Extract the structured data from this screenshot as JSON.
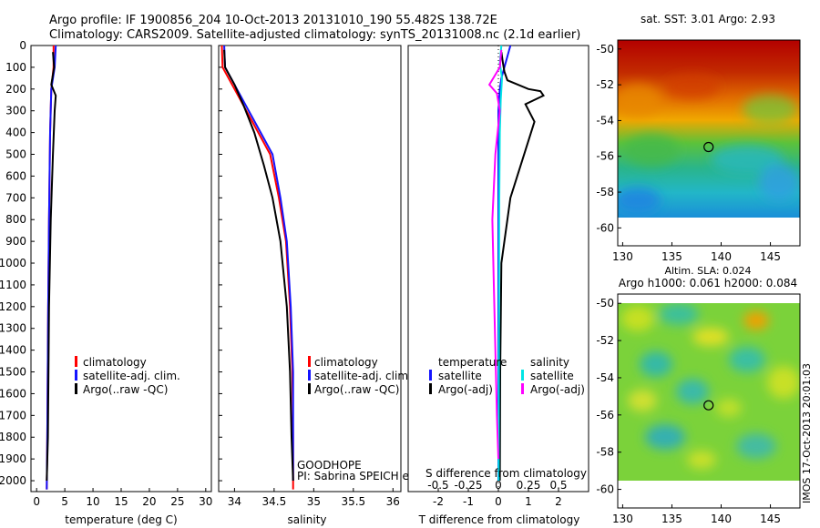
{
  "header": {
    "line1": "Argo profile: IF 1900856_204 10-Oct-2013 20131010_190 55.482S 138.72E",
    "line2": "Climatology: CARS2009. Satellite-adjusted climatology: synTS_20131008.nc (2.1d earlier)"
  },
  "colors": {
    "climatology": "#ff0000",
    "satellite": "#1414ff",
    "argo": "#000000",
    "salinity_satellite": "#00e5e5",
    "salinity_argo": "#ff00ff"
  },
  "chart_data": [
    {
      "id": "temperature",
      "type": "line",
      "xlabel": "temperature (deg C)",
      "xlim": [
        -1,
        31
      ],
      "xticks": [
        0,
        5,
        10,
        15,
        20,
        25,
        30
      ],
      "xtick_labels": [
        "0",
        "5",
        "10",
        "15",
        "20",
        "25",
        "30"
      ],
      "ylim": [
        2050,
        0
      ],
      "yticks": [
        0,
        100,
        200,
        300,
        400,
        500,
        600,
        700,
        800,
        900,
        1000,
        1100,
        1200,
        1300,
        1400,
        1500,
        1600,
        1700,
        1800,
        1900,
        2000
      ],
      "ytick_labels": [
        "0",
        "100",
        "200",
        "300",
        "400",
        "500",
        "600",
        "700",
        "800",
        "900",
        "1000",
        "1100",
        "1200",
        "1300",
        "1400",
        "1500",
        "1600",
        "1700",
        "1800",
        "1900",
        "2000"
      ],
      "legend": [
        "climatology",
        "satellite-adj. clim.",
        "Argo(..raw -QC)"
      ],
      "series": [
        {
          "name": "climatology",
          "color": "climatology",
          "x": [
            3.0,
            3.0,
            2.6,
            2.4,
            2.2,
            2.05,
            1.9,
            1.8
          ],
          "y": [
            0,
            100,
            200,
            400,
            800,
            1200,
            1800,
            2040
          ]
        },
        {
          "name": "satellite-adj. clim.",
          "color": "satellite",
          "x": [
            3.4,
            3.2,
            2.6,
            2.4,
            2.2,
            2.05,
            1.9,
            1.8
          ],
          "y": [
            0,
            100,
            200,
            400,
            800,
            1200,
            1800,
            2040
          ]
        },
        {
          "name": "Argo(..raw -QC)",
          "color": "argo",
          "x": [
            2.9,
            3.1,
            2.6,
            3.4,
            3.2,
            2.9,
            2.5,
            2.2,
            2.0,
            1.8
          ],
          "y": [
            30,
            100,
            180,
            230,
            300,
            500,
            800,
            1200,
            1800,
            2000
          ]
        }
      ]
    },
    {
      "id": "salinity",
      "type": "line",
      "xlabel": "salinity",
      "xlim": [
        33.8,
        36.1
      ],
      "xticks": [
        34,
        34.5,
        35,
        35.5,
        36
      ],
      "xtick_labels": [
        "34",
        "34.5",
        "35",
        "35.5",
        "36"
      ],
      "ylim": [
        2050,
        0
      ],
      "legend": [
        "climatology",
        "satellite-adj. clim.",
        "Argo(..raw -QC)"
      ],
      "annotation": [
        "GOODHOPE",
        "PI: Sabrina SPEICH et Michel ARHAN"
      ],
      "series": [
        {
          "name": "climatology",
          "color": "climatology",
          "x": [
            33.84,
            33.85,
            34.0,
            34.15,
            34.3,
            34.45,
            34.56,
            34.65,
            34.7,
            34.73,
            34.74,
            34.74
          ],
          "y": [
            0,
            100,
            200,
            300,
            400,
            500,
            700,
            900,
            1200,
            1500,
            1800,
            2040
          ]
        },
        {
          "name": "satellite-adj. clim.",
          "color": "satellite",
          "x": [
            33.87,
            33.88,
            34.03,
            34.18,
            34.33,
            34.48,
            34.58,
            34.66,
            34.71,
            34.74,
            34.74,
            34.74
          ],
          "y": [
            0,
            100,
            200,
            300,
            400,
            500,
            700,
            900,
            1200,
            1500,
            1800,
            2000
          ]
        },
        {
          "name": "Argo(..raw -QC)",
          "color": "argo",
          "x": [
            33.87,
            33.88,
            34.0,
            34.12,
            34.25,
            34.37,
            34.48,
            34.58,
            34.66,
            34.7,
            34.72,
            34.74
          ],
          "y": [
            20,
            100,
            180,
            280,
            400,
            550,
            700,
            900,
            1200,
            1500,
            1800,
            2000
          ]
        }
      ]
    },
    {
      "id": "difference",
      "type": "line",
      "xlabel": "T difference from climatology",
      "xlim": [
        -3,
        3
      ],
      "xticks": [
        -2,
        -1,
        0,
        1,
        2
      ],
      "xtick_labels": [
        "-2",
        "-1",
        "0",
        "1",
        "2"
      ],
      "top_label": "S difference from climatology",
      "sticks_labels": [
        "-0.5",
        "-0.25",
        "0",
        "0.25",
        "0.5"
      ],
      "sticks_values": [
        -2,
        -1,
        0,
        1,
        2
      ],
      "ylim": [
        2050,
        0
      ],
      "legend_temperature": {
        "title": "temperature",
        "items": [
          "satellite",
          "Argo(-adj)"
        ]
      },
      "legend_salinity": {
        "title": "salinity",
        "items": [
          "satellite",
          "Argo(-adj)"
        ]
      },
      "series": [
        {
          "name": "temperature satellite",
          "color": "satellite",
          "x": [
            0.4,
            0.3,
            0.2,
            0.1,
            0.05,
            0.0,
            0.0,
            0.0,
            0.0
          ],
          "y": [
            0,
            50,
            100,
            150,
            200,
            300,
            800,
            1400,
            2000
          ]
        },
        {
          "name": "temperature Argo(-adj)",
          "color": "argo",
          "x": [
            0.1,
            0.15,
            0.2,
            0.3,
            1.0,
            1.4,
            1.5,
            0.9,
            1.2,
            0.4,
            0.1,
            0.06,
            0.05
          ],
          "y": [
            30,
            80,
            120,
            160,
            200,
            210,
            230,
            270,
            350,
            700,
            1000,
            1500,
            2000
          ]
        },
        {
          "name": "salinity satellite",
          "color": "salinity_satellite",
          "x": [
            0.1,
            0.05,
            0.12,
            0.08,
            0.05,
            0.03,
            0.02,
            0.01
          ],
          "y": [
            0,
            80,
            150,
            250,
            400,
            700,
            1200,
            2000
          ]
        },
        {
          "name": "salinity Argo(-adj)",
          "color": "salinity_argo",
          "x": [
            0.1,
            0.05,
            -0.3,
            -0.05,
            0.05,
            -0.1,
            -0.2,
            -0.15,
            -0.1,
            -0.05,
            0.0
          ],
          "y": [
            20,
            100,
            180,
            220,
            300,
            500,
            800,
            1100,
            1400,
            1700,
            1900
          ]
        }
      ]
    },
    {
      "id": "sst_map",
      "type": "heatmap",
      "title": "sat. SST: 3.01  Argo: 2.93",
      "xlim": [
        129.5,
        148
      ],
      "ylim": [
        -61,
        -49.5
      ],
      "xticks": [
        130,
        135,
        140,
        145
      ],
      "xtick_labels": [
        "130",
        "135",
        "140",
        "145"
      ],
      "yticks": [
        -50,
        -52,
        -54,
        -56,
        -58,
        -60
      ],
      "ytick_labels": [
        "-50",
        "-52",
        "-54",
        "-56",
        "-58",
        "-60"
      ],
      "data_extent_lat": [
        -60,
        -49.5
      ],
      "marker": {
        "lon": 138.72,
        "lat": -55.48
      }
    },
    {
      "id": "sla_map",
      "type": "heatmap",
      "title": "Altim. SLA: 0.024",
      "subtitle": "Argo h1000: 0.061 h2000: 0.084",
      "xlim": [
        129.5,
        148
      ],
      "ylim": [
        -61,
        -49.5
      ],
      "xticks": [
        130,
        135,
        140,
        145
      ],
      "xtick_labels": [
        "130",
        "135",
        "140",
        "145"
      ],
      "yticks": [
        -50,
        -52,
        -54,
        -56,
        -58,
        -60
      ],
      "ytick_labels": [
        "-50",
        "-52",
        "-54",
        "-56",
        "-58",
        "-60"
      ],
      "data_extent_lat": [
        -60,
        -49.5
      ],
      "marker": {
        "lon": 138.72,
        "lat": -55.48
      }
    }
  ],
  "side_label": "IMOS 17-Oct-2013 20:01:03"
}
